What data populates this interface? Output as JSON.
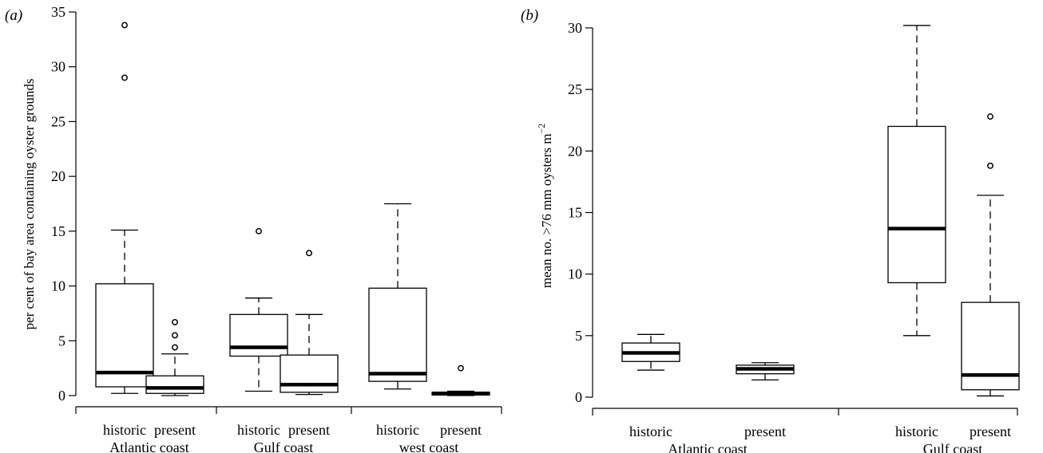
{
  "chart_data": [
    {
      "panel_label": "(a)",
      "type": "boxplot",
      "ylabel": "per cent of bay area containing oyster grounds",
      "ylim": [
        0,
        35
      ],
      "yticks": [
        0,
        5,
        10,
        15,
        20,
        25,
        30,
        35
      ],
      "boxes": [
        {
          "label": "historic",
          "whisker_low": 0.2,
          "q1": 0.8,
          "median": 2.1,
          "q3": 10.2,
          "whisker_high": 15.1,
          "outliers": [
            29.0,
            33.8
          ]
        },
        {
          "label": "present",
          "whisker_low": 0.0,
          "q1": 0.2,
          "median": 0.7,
          "q3": 1.8,
          "whisker_high": 3.8,
          "outliers": [
            4.4,
            5.5,
            6.7
          ]
        },
        {
          "label": "historic",
          "whisker_low": 0.4,
          "q1": 3.6,
          "median": 4.4,
          "q3": 7.4,
          "whisker_high": 8.9,
          "outliers": [
            15.0
          ]
        },
        {
          "label": "present",
          "whisker_low": 0.1,
          "q1": 0.3,
          "median": 1.0,
          "q3": 3.7,
          "whisker_high": 7.4,
          "outliers": [
            13.0
          ]
        },
        {
          "label": "historic",
          "whisker_low": 0.6,
          "q1": 1.3,
          "median": 2.0,
          "q3": 9.8,
          "whisker_high": 17.5,
          "outliers": []
        },
        {
          "label": "present",
          "whisker_low": 0.0,
          "q1": 0.05,
          "median": 0.2,
          "q3": 0.3,
          "whisker_high": 0.4,
          "outliers": [
            2.5
          ]
        }
      ],
      "groups": [
        "Atlantic coast",
        "Gulf coast",
        "west coast"
      ]
    },
    {
      "panel_label": "(b)",
      "type": "boxplot",
      "ylabel": "mean no. >76 mm oysters m",
      "ylabel_sup": "−2",
      "ylim": [
        0,
        30
      ],
      "yticks": [
        0,
        5,
        10,
        15,
        20,
        25,
        30
      ],
      "boxes": [
        {
          "label": "historic",
          "whisker_low": 2.2,
          "q1": 2.9,
          "median": 3.6,
          "q3": 4.4,
          "whisker_high": 5.1,
          "outliers": []
        },
        {
          "label": "present",
          "whisker_low": 1.4,
          "q1": 1.9,
          "median": 2.3,
          "q3": 2.6,
          "whisker_high": 2.8,
          "outliers": []
        },
        {
          "label": "historic",
          "whisker_low": 5.0,
          "q1": 9.3,
          "median": 13.7,
          "q3": 22.0,
          "whisker_high": 30.2,
          "outliers": []
        },
        {
          "label": "present",
          "whisker_low": 0.1,
          "q1": 0.6,
          "median": 1.8,
          "q3": 7.7,
          "whisker_high": 16.4,
          "outliers": [
            18.8,
            22.8
          ]
        }
      ],
      "groups": [
        "Atlantic coast",
        "Gulf coast"
      ]
    }
  ]
}
